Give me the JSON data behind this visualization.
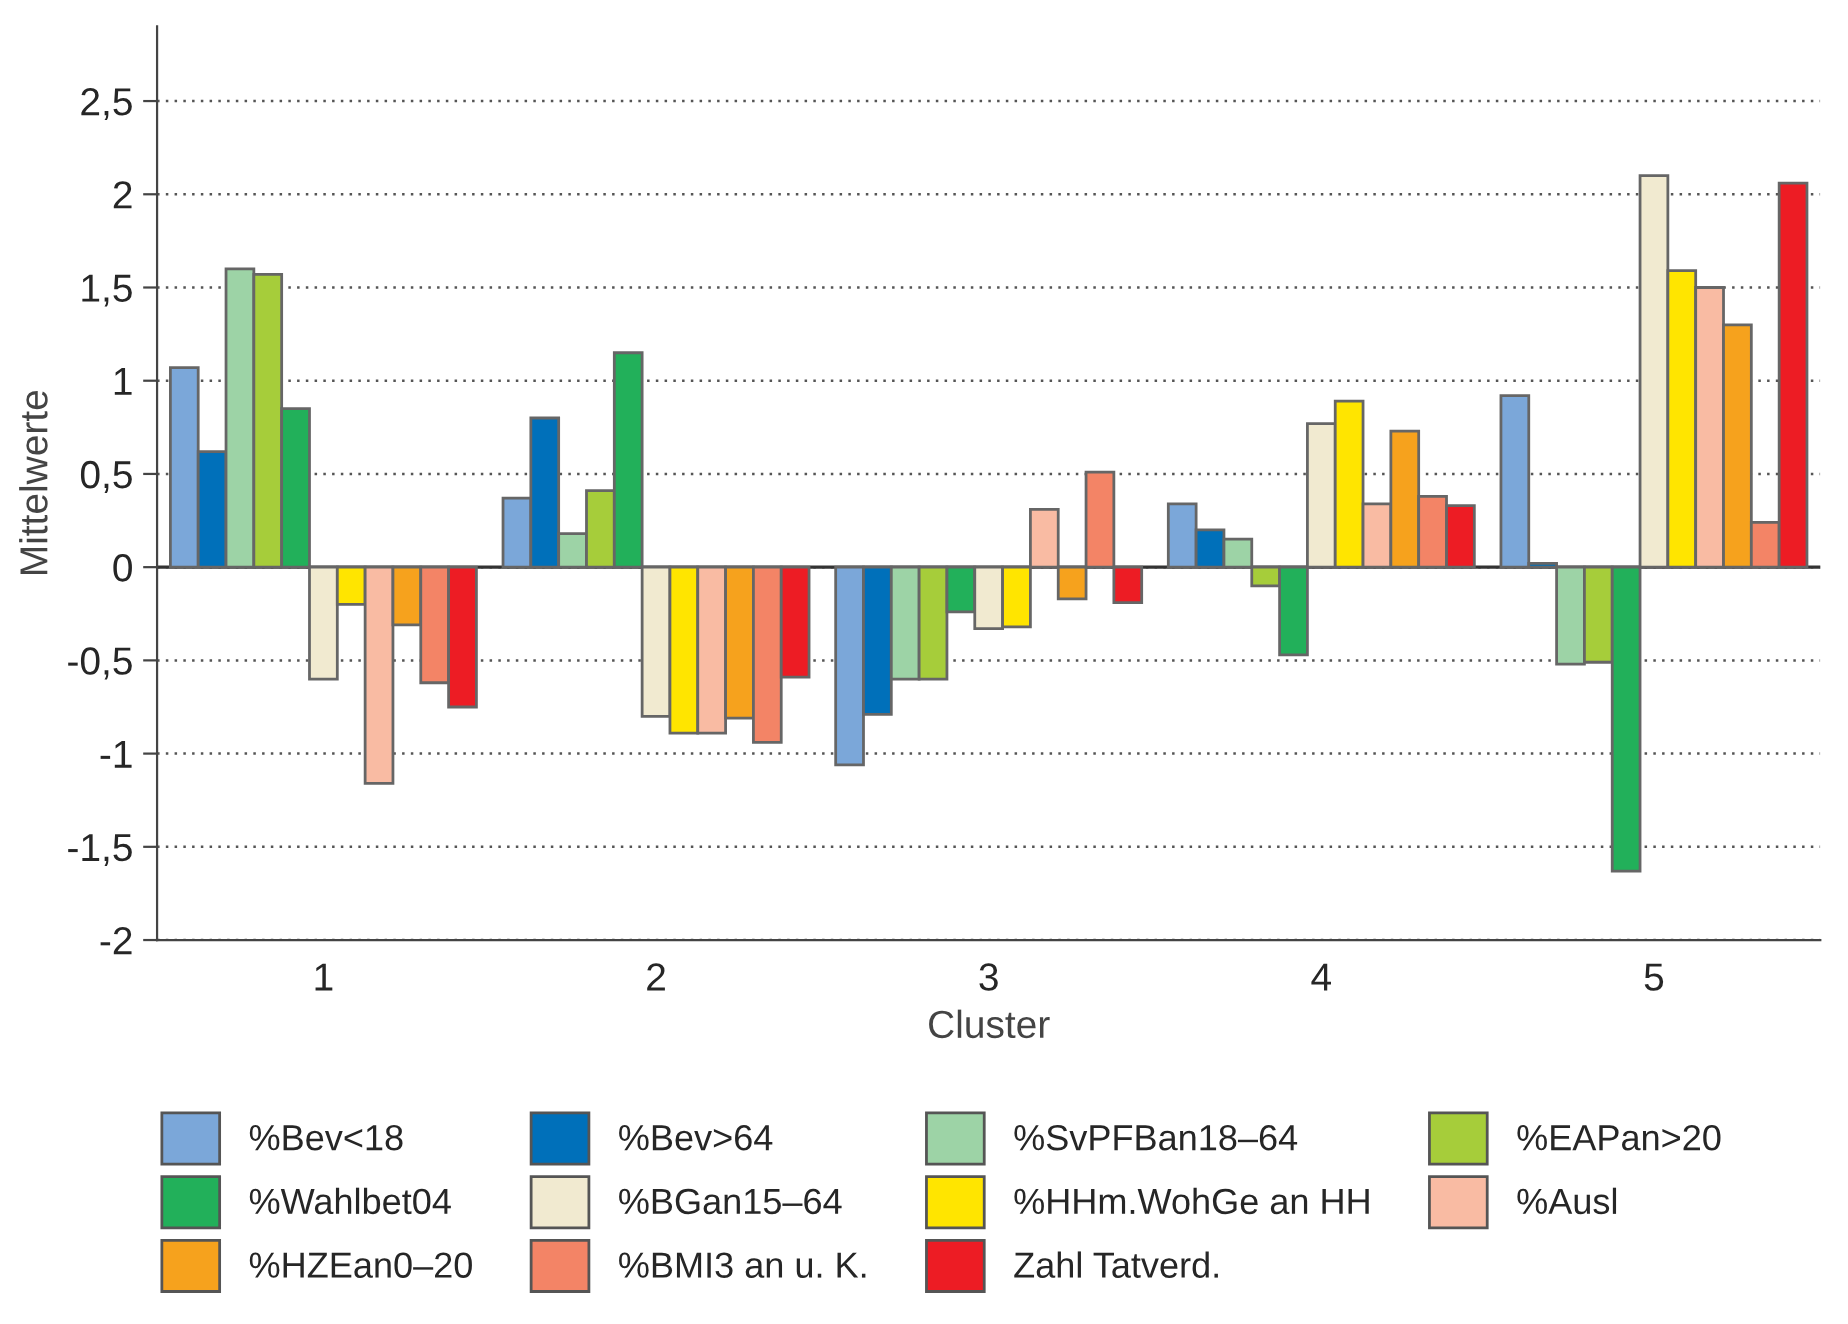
{
  "chart_data": {
    "type": "bar",
    "xlabel": "Cluster",
    "ylabel": "Mittelwerte",
    "categories": [
      "1",
      "2",
      "3",
      "4",
      "5"
    ],
    "series": [
      {
        "name": "%Bev<18",
        "color": "#7ba7d9",
        "values": [
          1.07,
          0.37,
          -1.06,
          0.34,
          0.92
        ]
      },
      {
        "name": "%Bev>64",
        "color": "#0070ba",
        "values": [
          0.62,
          0.8,
          -0.79,
          0.2,
          0.02
        ]
      },
      {
        "name": "%SvPFBan18–64",
        "color": "#9dd3a6",
        "values": [
          1.6,
          0.18,
          -0.6,
          0.15,
          -0.52
        ]
      },
      {
        "name": "%EAPan>20",
        "color": "#a6cd3a",
        "values": [
          1.57,
          0.41,
          -0.6,
          -0.1,
          -0.51
        ]
      },
      {
        "name": "%Wahlbet04",
        "color": "#22b05a",
        "values": [
          0.85,
          1.15,
          -0.24,
          -0.47,
          -1.63
        ]
      },
      {
        "name": "%BGan15–64",
        "color": "#f1ead0",
        "values": [
          -0.6,
          -0.8,
          -0.33,
          0.77,
          2.1
        ]
      },
      {
        "name": "%HHm.WohGe an HH",
        "color": "#ffe500",
        "values": [
          -0.2,
          -0.89,
          -0.32,
          0.89,
          1.59
        ]
      },
      {
        "name": "%Ausl",
        "color": "#f9bba3",
        "values": [
          -1.16,
          -0.89,
          0.31,
          0.34,
          1.5
        ]
      },
      {
        "name": "%HZEan0–20",
        "color": "#f6a21d",
        "values": [
          -0.31,
          -0.81,
          -0.17,
          0.73,
          1.3
        ]
      },
      {
        "name": "%BMI3 an u. K.",
        "color": "#f38466",
        "values": [
          -0.62,
          -0.94,
          0.51,
          0.38,
          0.24
        ]
      },
      {
        "name": "Zahl Tatverd.",
        "color": "#ed1c24",
        "values": [
          -0.75,
          -0.59,
          -0.19,
          0.33,
          2.06
        ]
      }
    ],
    "ylim": [
      -2,
      2.9
    ],
    "yticks": [
      -2,
      {
        "value": -1.5,
        "label": "-1,5"
      },
      -1,
      {
        "value": -0.5,
        "label": "-0,5"
      },
      0,
      {
        "value": 0.5,
        "label": "0,5"
      },
      1,
      {
        "value": 1.5,
        "label": "1,5"
      },
      2,
      {
        "value": 2.5,
        "label": "2,5"
      }
    ],
    "ref_lines": [
      {
        "axis": "y",
        "value": 0,
        "color": "#333333"
      }
    ],
    "grid": "y",
    "legend": "bottom"
  }
}
